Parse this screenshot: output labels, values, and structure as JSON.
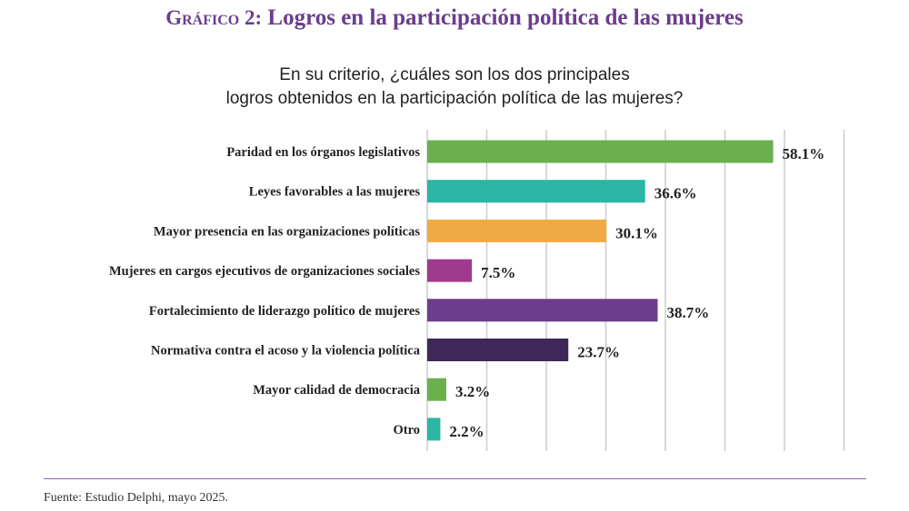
{
  "header": {
    "title_prefix": "Gráfico 2:",
    "title_text": "Logros en la participación política de las mujeres"
  },
  "footer": {
    "source": "Fuente: Estudio Delphi, mayo 2025."
  },
  "chart_data": {
    "type": "bar",
    "orientation": "horizontal",
    "title": "Gráfico 2: Logros en la participación política de las mujeres",
    "subtitle_lines": [
      "En su criterio, ¿cuáles son los dos principales",
      "logros obtenidos en la participación política de las mujeres?"
    ],
    "categories": [
      "Paridad en los órganos legislativos",
      "Leyes  favorables a las mujeres",
      "Mayor presencia en las organizaciones políticas",
      "Mujeres en cargos ejecutivos de organizaciones sociales",
      "Fortalecimiento de liderazgo político de mujeres",
      "Normativa contra el acoso y la violencia  política",
      "Mayor calidad de democracia",
      "Otro"
    ],
    "values": [
      58.1,
      36.6,
      30.1,
      7.5,
      38.7,
      23.7,
      3.2,
      2.2
    ],
    "value_labels": [
      "58.1%",
      "36.6%",
      "30.1%",
      "7.5%",
      "38.7%",
      "23.7%",
      "3.2%",
      "2.2%"
    ],
    "colors": [
      "#6ab04c",
      "#2bb5a5",
      "#f0aa45",
      "#a03a8e",
      "#6b3d8c",
      "#3f2758",
      "#6ab04c",
      "#2bb5a5"
    ],
    "xlim": [
      0,
      70
    ],
    "grid_step": 10,
    "grid": true,
    "grid_color": "#cccccc"
  }
}
